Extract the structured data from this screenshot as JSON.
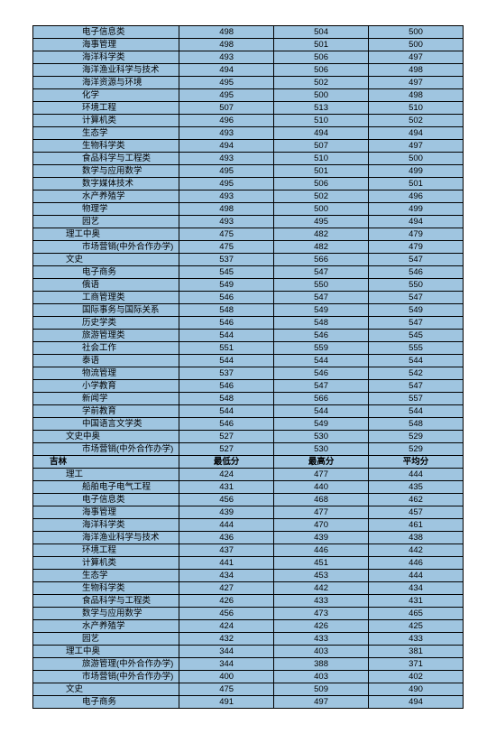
{
  "rows": [
    {
      "label": "电子信息类",
      "indent": 3,
      "bold": false,
      "v": [
        "498",
        "504",
        "500"
      ]
    },
    {
      "label": "海事管理",
      "indent": 3,
      "bold": false,
      "v": [
        "498",
        "501",
        "500"
      ]
    },
    {
      "label": "海洋科学类",
      "indent": 3,
      "bold": false,
      "v": [
        "493",
        "506",
        "497"
      ]
    },
    {
      "label": "海洋渔业科学与技术",
      "indent": 3,
      "bold": false,
      "v": [
        "494",
        "506",
        "498"
      ]
    },
    {
      "label": "海洋资源与环境",
      "indent": 3,
      "bold": false,
      "v": [
        "495",
        "502",
        "497"
      ]
    },
    {
      "label": "化学",
      "indent": 3,
      "bold": false,
      "v": [
        "495",
        "500",
        "498"
      ]
    },
    {
      "label": "环境工程",
      "indent": 3,
      "bold": false,
      "v": [
        "507",
        "513",
        "510"
      ]
    },
    {
      "label": "计算机类",
      "indent": 3,
      "bold": false,
      "v": [
        "496",
        "510",
        "502"
      ]
    },
    {
      "label": "生态学",
      "indent": 3,
      "bold": false,
      "v": [
        "493",
        "494",
        "494"
      ]
    },
    {
      "label": "生物科学类",
      "indent": 3,
      "bold": false,
      "v": [
        "494",
        "507",
        "497"
      ]
    },
    {
      "label": "食品科学与工程类",
      "indent": 3,
      "bold": false,
      "v": [
        "493",
        "510",
        "500"
      ]
    },
    {
      "label": "数学与应用数学",
      "indent": 3,
      "bold": false,
      "v": [
        "495",
        "501",
        "499"
      ]
    },
    {
      "label": "数字媒体技术",
      "indent": 3,
      "bold": false,
      "v": [
        "495",
        "506",
        "501"
      ]
    },
    {
      "label": "水产养殖学",
      "indent": 3,
      "bold": false,
      "v": [
        "493",
        "502",
        "496"
      ]
    },
    {
      "label": "物理学",
      "indent": 3,
      "bold": false,
      "v": [
        "498",
        "500",
        "499"
      ]
    },
    {
      "label": "园艺",
      "indent": 3,
      "bold": false,
      "v": [
        "493",
        "495",
        "494"
      ]
    },
    {
      "label": "理工中奥",
      "indent": 2,
      "bold": false,
      "v": [
        "475",
        "482",
        "479"
      ]
    },
    {
      "label": "市场营销(中外合作办学)",
      "indent": 3,
      "bold": false,
      "v": [
        "475",
        "482",
        "479"
      ]
    },
    {
      "label": "文史",
      "indent": 2,
      "bold": false,
      "v": [
        "537",
        "566",
        "547"
      ]
    },
    {
      "label": "电子商务",
      "indent": 3,
      "bold": false,
      "v": [
        "545",
        "547",
        "546"
      ]
    },
    {
      "label": "俄语",
      "indent": 3,
      "bold": false,
      "v": [
        "549",
        "550",
        "550"
      ]
    },
    {
      "label": "工商管理类",
      "indent": 3,
      "bold": false,
      "v": [
        "546",
        "547",
        "547"
      ]
    },
    {
      "label": "国际事务与国际关系",
      "indent": 3,
      "bold": false,
      "v": [
        "548",
        "549",
        "549"
      ]
    },
    {
      "label": "历史学类",
      "indent": 3,
      "bold": false,
      "v": [
        "546",
        "548",
        "547"
      ]
    },
    {
      "label": "旅游管理类",
      "indent": 3,
      "bold": false,
      "v": [
        "544",
        "546",
        "545"
      ]
    },
    {
      "label": "社会工作",
      "indent": 3,
      "bold": false,
      "v": [
        "551",
        "559",
        "555"
      ]
    },
    {
      "label": "泰语",
      "indent": 3,
      "bold": false,
      "v": [
        "544",
        "544",
        "544"
      ]
    },
    {
      "label": "物流管理",
      "indent": 3,
      "bold": false,
      "v": [
        "537",
        "546",
        "542"
      ]
    },
    {
      "label": "小学教育",
      "indent": 3,
      "bold": false,
      "v": [
        "546",
        "547",
        "547"
      ]
    },
    {
      "label": "新闻学",
      "indent": 3,
      "bold": false,
      "v": [
        "548",
        "566",
        "557"
      ]
    },
    {
      "label": "学前教育",
      "indent": 3,
      "bold": false,
      "v": [
        "544",
        "544",
        "544"
      ]
    },
    {
      "label": "中国语言文学类",
      "indent": 3,
      "bold": false,
      "v": [
        "546",
        "549",
        "548"
      ]
    },
    {
      "label": "文史中奥",
      "indent": 2,
      "bold": false,
      "v": [
        "527",
        "530",
        "529"
      ]
    },
    {
      "label": "市场营销(中外合作办学)",
      "indent": 3,
      "bold": false,
      "v": [
        "527",
        "530",
        "529"
      ]
    },
    {
      "label": "吉林",
      "indent": 1,
      "bold": true,
      "v": [
        "最低分",
        "最高分",
        "平均分"
      ],
      "boldv": true
    },
    {
      "label": "理工",
      "indent": 2,
      "bold": false,
      "v": [
        "424",
        "477",
        "444"
      ]
    },
    {
      "label": "船舶电子电气工程",
      "indent": 3,
      "bold": false,
      "v": [
        "431",
        "440",
        "435"
      ]
    },
    {
      "label": "电子信息类",
      "indent": 3,
      "bold": false,
      "v": [
        "456",
        "468",
        "462"
      ]
    },
    {
      "label": "海事管理",
      "indent": 3,
      "bold": false,
      "v": [
        "439",
        "477",
        "457"
      ]
    },
    {
      "label": "海洋科学类",
      "indent": 3,
      "bold": false,
      "v": [
        "444",
        "470",
        "461"
      ]
    },
    {
      "label": "海洋渔业科学与技术",
      "indent": 3,
      "bold": false,
      "v": [
        "436",
        "439",
        "438"
      ]
    },
    {
      "label": "环境工程",
      "indent": 3,
      "bold": false,
      "v": [
        "437",
        "446",
        "442"
      ]
    },
    {
      "label": "计算机类",
      "indent": 3,
      "bold": false,
      "v": [
        "441",
        "451",
        "446"
      ]
    },
    {
      "label": "生态学",
      "indent": 3,
      "bold": false,
      "v": [
        "434",
        "453",
        "444"
      ]
    },
    {
      "label": "生物科学类",
      "indent": 3,
      "bold": false,
      "v": [
        "427",
        "442",
        "434"
      ]
    },
    {
      "label": "食品科学与工程类",
      "indent": 3,
      "bold": false,
      "v": [
        "426",
        "433",
        "431"
      ]
    },
    {
      "label": "数学与应用数学",
      "indent": 3,
      "bold": false,
      "v": [
        "456",
        "473",
        "465"
      ]
    },
    {
      "label": "水产养殖学",
      "indent": 3,
      "bold": false,
      "v": [
        "424",
        "426",
        "425"
      ]
    },
    {
      "label": "园艺",
      "indent": 3,
      "bold": false,
      "v": [
        "432",
        "433",
        "433"
      ]
    },
    {
      "label": "理工中奥",
      "indent": 2,
      "bold": false,
      "v": [
        "344",
        "403",
        "381"
      ]
    },
    {
      "label": "旅游管理(中外合作办学)",
      "indent": 3,
      "bold": false,
      "v": [
        "344",
        "388",
        "371"
      ]
    },
    {
      "label": "市场营销(中外合作办学)",
      "indent": 3,
      "bold": false,
      "v": [
        "400",
        "403",
        "402"
      ]
    },
    {
      "label": "文史",
      "indent": 2,
      "bold": false,
      "v": [
        "475",
        "509",
        "490"
      ]
    },
    {
      "label": "电子商务",
      "indent": 3,
      "bold": false,
      "v": [
        "491",
        "497",
        "494"
      ]
    }
  ]
}
